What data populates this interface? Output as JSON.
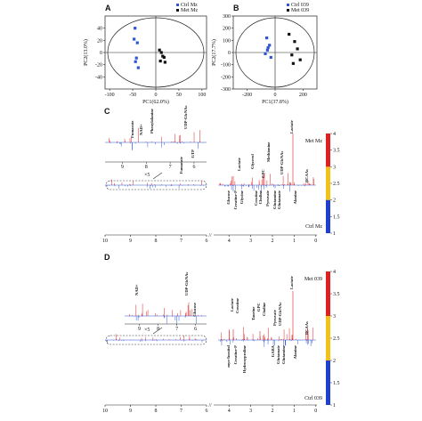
{
  "chart_data": [
    {
      "type": "scatter",
      "panel": "A",
      "xlabel": "PC1(62.0%)",
      "ylabel": "PC2(13.0%)",
      "xlim": [
        -110,
        110
      ],
      "xticks": [
        -100,
        -50,
        0,
        50,
        100
      ],
      "ylim": [
        -60,
        60
      ],
      "yticks": [
        -40,
        -20,
        0,
        20,
        40
      ],
      "series": [
        {
          "name": "Ctrl Mz",
          "color": "#2f55d4",
          "x": [
            -45,
            -47,
            -40,
            -42,
            -44,
            -38
          ],
          "y": [
            40,
            22,
            16,
            -9,
            -15,
            -25
          ]
        },
        {
          "name": "Met Mz",
          "color": "#111111",
          "x": [
            8,
            12,
            15,
            18,
            10,
            20
          ],
          "y": [
            4,
            0,
            -6,
            -8,
            -14,
            -16
          ]
        }
      ]
    },
    {
      "type": "scatter",
      "panel": "B",
      "xlabel": "PC1(37.8%)",
      "ylabel": "PC2(17.7%)",
      "xlim": [
        -300,
        300
      ],
      "xticks": [
        -200,
        0,
        200
      ],
      "ylim": [
        -300,
        300
      ],
      "yticks": [
        -300,
        -200,
        -100,
        0,
        100,
        200,
        300
      ],
      "series": [
        {
          "name": "Ctrl 039",
          "color": "#2f55d4",
          "x": [
            -60,
            -40,
            -50,
            -70,
            -30,
            -55
          ],
          "y": [
            120,
            60,
            40,
            -10,
            -40,
            20
          ]
        },
        {
          "name": "Met 039",
          "color": "#111111",
          "x": [
            100,
            140,
            160,
            120,
            180,
            130
          ],
          "y": [
            150,
            90,
            30,
            -20,
            -60,
            -90
          ]
        }
      ]
    }
  ],
  "panel_c": {
    "letter": "C",
    "top_group": "Met Mz",
    "bottom_group": "Ctrl Mz",
    "zoom": "×5",
    "break": "//",
    "ticks": [
      10,
      9,
      8,
      7,
      6,
      4,
      3,
      2,
      1,
      0
    ],
    "inset_ticks": [
      9,
      8,
      7,
      6
    ],
    "inset_labels": [
      "Fumarate",
      "NAD+",
      "Phenylalanine",
      "UDP-GlcNAc",
      "GTP",
      "Fumarate"
    ],
    "labels": [
      "Lactate",
      "Glycerol",
      "Methionine",
      "Lactate",
      "GPC",
      "UDP-GlcNAc",
      "BCAAs",
      "Glucose",
      "Creatine-P",
      "Glycine",
      "Creatine",
      "Choline",
      "Pyruvate",
      "Glutamine",
      "Glutamate",
      "Alanine"
    ],
    "colorbar": {
      "lim": [
        1,
        4
      ],
      "ticks": [
        1,
        1.5,
        2,
        2.5,
        3,
        3.5,
        4
      ],
      "colors": [
        "#1f3fd1",
        "#f2c21a",
        "#e02020"
      ]
    }
  },
  "panel_d": {
    "letter": "D",
    "top_group": "Met 039",
    "bottom_group": "Ctrl 039",
    "zoom": "×5",
    "break": "//",
    "ticks": [
      10,
      9,
      8,
      7,
      6,
      4,
      3,
      2,
      1,
      0
    ],
    "inset_ticks": [
      9,
      8,
      7,
      6
    ],
    "inset_labels": [
      "NAD+",
      "UDP-GlcNAc",
      "Glucose"
    ],
    "labels": [
      "Lactate",
      "Lactate",
      "Creatine",
      "Taurine",
      "GPC",
      "Choline",
      "Pyruvate",
      "UDP-GlcNAc",
      "BCAAs",
      "myo-Inositol",
      "Creatine-P",
      "Hydroxyproline",
      "GABA",
      "Glutamate",
      "Glutamine",
      "Alanine"
    ],
    "colorbar": {
      "lim": [
        1,
        4
      ],
      "ticks": [
        1,
        1.5,
        2,
        2.5,
        3,
        3.5,
        4
      ],
      "colors": [
        "#1f3fd1",
        "#f2c21a",
        "#e02020"
      ]
    }
  }
}
